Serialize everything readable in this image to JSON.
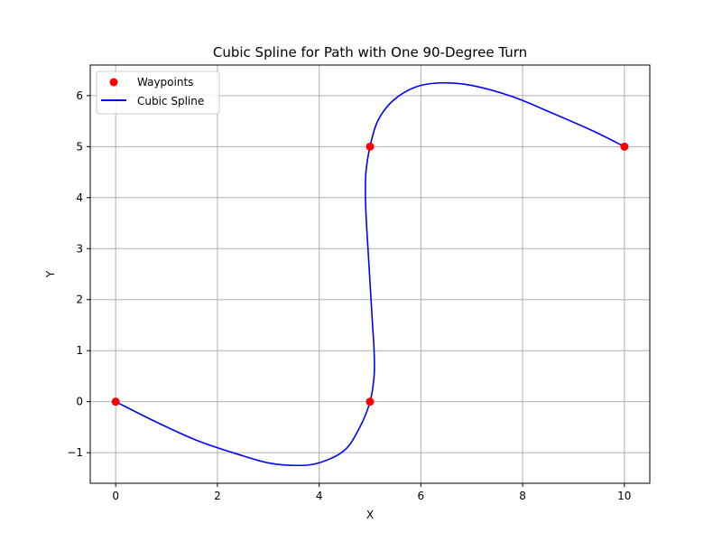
{
  "chart_data": {
    "type": "line",
    "title": "Cubic Spline for Path with One 90-Degree Turn",
    "xlabel": "X",
    "ylabel": "Y",
    "xlim": [
      -0.5,
      10.5
    ],
    "ylim": [
      -1.6,
      6.6
    ],
    "xticks": [
      0,
      2,
      4,
      6,
      8,
      10
    ],
    "yticks": [
      -1,
      0,
      1,
      2,
      3,
      4,
      5,
      6
    ],
    "x_tick_labels": [
      "0",
      "2",
      "4",
      "6",
      "8",
      "10"
    ],
    "y_tick_labels": [
      "−1",
      "0",
      "1",
      "2",
      "3",
      "4",
      "5",
      "6"
    ],
    "grid": true,
    "legend_position": "top-left",
    "series": [
      {
        "name": "Waypoints",
        "kind": "scatter",
        "color": "#ff0000",
        "points": [
          {
            "x": 0,
            "y": 0
          },
          {
            "x": 5,
            "y": 0
          },
          {
            "x": 5,
            "y": 5
          },
          {
            "x": 10,
            "y": 5
          }
        ]
      },
      {
        "name": "Cubic Spline",
        "kind": "line",
        "color": "#0000ff",
        "points": [
          {
            "x": 0.0,
            "y": 0.0
          },
          {
            "x": 0.8,
            "y": -0.4
          },
          {
            "x": 1.6,
            "y": -0.76
          },
          {
            "x": 2.4,
            "y": -1.03
          },
          {
            "x": 3.0,
            "y": -1.2
          },
          {
            "x": 3.55,
            "y": -1.25
          },
          {
            "x": 4.0,
            "y": -1.2
          },
          {
            "x": 4.5,
            "y": -0.95
          },
          {
            "x": 4.8,
            "y": -0.5
          },
          {
            "x": 5.0,
            "y": 0.0
          },
          {
            "x": 5.08,
            "y": 0.5
          },
          {
            "x": 5.08,
            "y": 1.0
          },
          {
            "x": 5.05,
            "y": 1.5
          },
          {
            "x": 5.02,
            "y": 2.0
          },
          {
            "x": 4.99,
            "y": 2.5
          },
          {
            "x": 4.96,
            "y": 3.0
          },
          {
            "x": 4.93,
            "y": 3.5
          },
          {
            "x": 4.91,
            "y": 4.0
          },
          {
            "x": 4.92,
            "y": 4.5
          },
          {
            "x": 5.0,
            "y": 5.0
          },
          {
            "x": 5.15,
            "y": 5.5
          },
          {
            "x": 5.45,
            "y": 5.9
          },
          {
            "x": 5.9,
            "y": 6.17
          },
          {
            "x": 6.4,
            "y": 6.25
          },
          {
            "x": 7.0,
            "y": 6.2
          },
          {
            "x": 7.8,
            "y": 5.98
          },
          {
            "x": 8.6,
            "y": 5.65
          },
          {
            "x": 9.4,
            "y": 5.3
          },
          {
            "x": 10.0,
            "y": 5.0
          }
        ]
      }
    ]
  }
}
